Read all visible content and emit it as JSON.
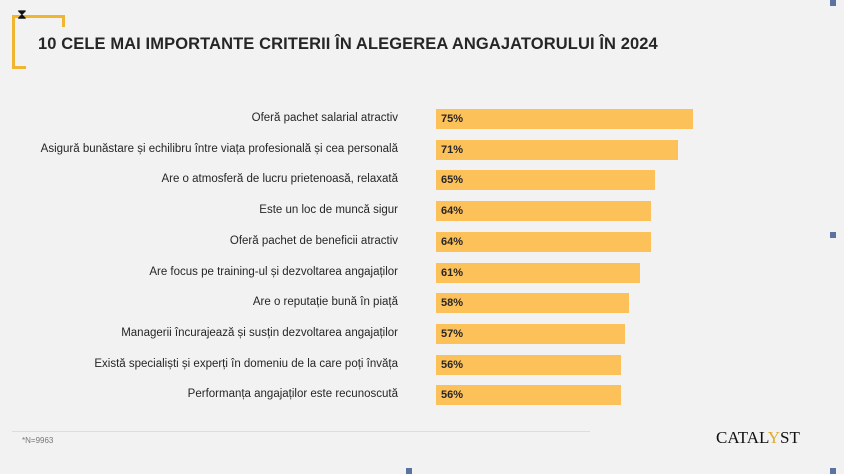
{
  "title": "10 CELE MAI IMPORTANTE CRITERII ÎN ALEGEREA ANGAJATORULUI ÎN 2024",
  "note": "*N=9963",
  "logo": "CATALYST",
  "colors": {
    "bar": "#fdc15a",
    "accent": "#f0b632"
  },
  "chart_data": {
    "type": "bar",
    "orientation": "horizontal",
    "title": "10 CELE MAI IMPORTANTE CRITERII ÎN ALEGEREA ANGAJATORULUI ÎN 2024",
    "categories": [
      "Oferă pachet salarial atractiv",
      "Asigură bunăstare și echilibru între viața profesională și cea personală",
      "Are o atmosferă de lucru prietenoasă, relaxată",
      "Este un loc de muncă sigur",
      "Oferă pachet de beneficii atractiv",
      "Are focus pe training-ul și dezvoltarea angajaților",
      "Are o reputație bună în piață",
      "Managerii încurajează și susțin dezvoltarea angajaților",
      "Există specialiști și experți în domeniu de la care poți învăța",
      "Performanța angajaților este recunoscută"
    ],
    "values": [
      75,
      71,
      65,
      64,
      64,
      61,
      58,
      57,
      56,
      56
    ],
    "labels": [
      "75%",
      "71%",
      "65%",
      "64%",
      "64%",
      "61%",
      "58%",
      "57%",
      "56%",
      "56%"
    ],
    "unit": "%"
  }
}
